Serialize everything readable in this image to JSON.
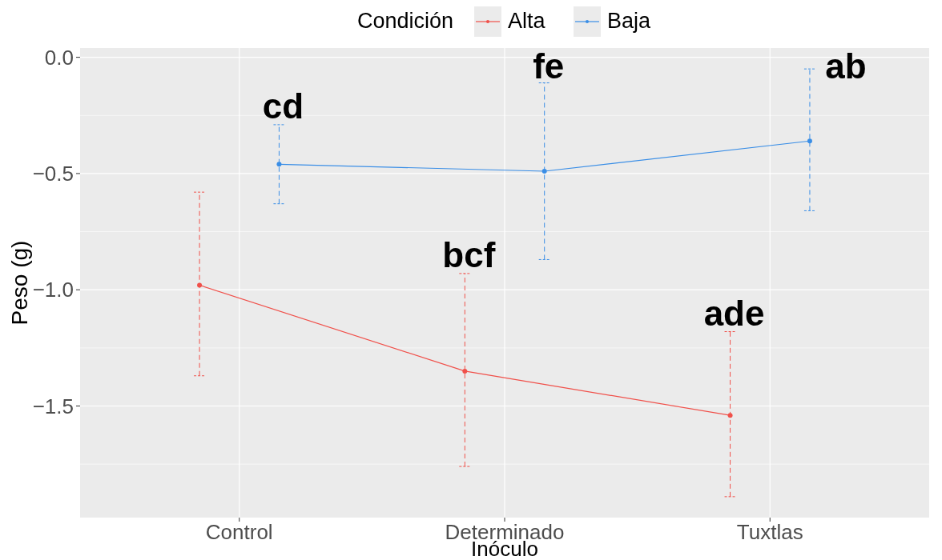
{
  "chart_data": {
    "type": "line",
    "xlabel": "Inóculo",
    "ylabel": "Peso (g)",
    "legend_title": "Condición",
    "legend": "top",
    "grid": true,
    "marker": "circle",
    "line_style": "solid",
    "categories": [
      "Control",
      "Determinado",
      "Tuxtlas"
    ],
    "ylim": [
      -1.98,
      0.04
    ],
    "yticks": [
      {
        "value": 0,
        "label": "0.0"
      },
      {
        "value": -0.5,
        "label": "−0.5"
      },
      {
        "value": -1,
        "label": "−1.0"
      },
      {
        "value": -1.5,
        "label": "−1.5"
      }
    ],
    "series": [
      {
        "name": "Alta",
        "color": "#f0504a",
        "values": [
          -0.98,
          -1.35,
          -1.54
        ],
        "errors": [
          [
            -1.37,
            -0.58
          ],
          [
            -1.76,
            -0.93
          ],
          [
            -1.89,
            -1.18
          ]
        ]
      },
      {
        "name": "Baja",
        "color": "#3a8ee6",
        "values": [
          -0.46,
          -0.49,
          -0.36
        ],
        "errors": [
          [
            -0.63,
            -0.29
          ],
          [
            -0.87,
            -0.11
          ],
          [
            -0.66,
            -0.05
          ]
        ]
      }
    ],
    "annotations": [
      "cd",
      "fe",
      "ab",
      "bcf",
      "ade"
    ]
  }
}
